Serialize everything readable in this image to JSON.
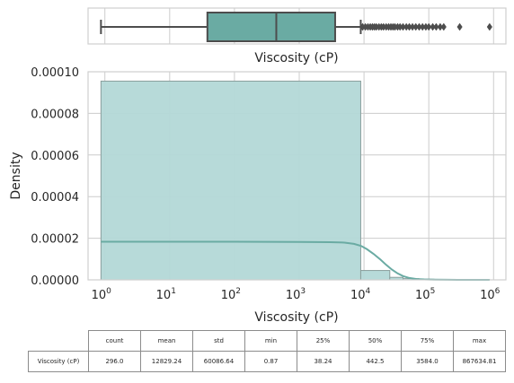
{
  "colors": {
    "box_fill": "#6aaba3",
    "box_line": "#4d4d4d",
    "hist_fill": "#b3d8d7",
    "hist_edge": "#8a9e9c",
    "kde_line": "#6aaba3",
    "grid": "#cccccc",
    "frame": "#cfcfcf"
  },
  "chart_data": [
    {
      "type": "box",
      "xscale": "log",
      "xlabel": "Viscosity (cP)",
      "whisker_low": 0.87,
      "q1": 38.24,
      "median": 442.5,
      "q3": 3584.0,
      "whisker_high": 8900,
      "outliers": [
        9500,
        10500,
        11500,
        12500,
        13500,
        14500,
        15500,
        17000,
        18500,
        20000,
        22000,
        24000,
        26000,
        28000,
        30000,
        33000,
        36000,
        40000,
        45000,
        50000,
        56000,
        63000,
        71000,
        80000,
        90000,
        100000,
        115000,
        130000,
        150000,
        170000,
        300000,
        867634.81
      ]
    },
    {
      "type": "histogram",
      "xscale": "log",
      "xlabel": "Viscosity (cP)",
      "ylabel": "Density",
      "ylim": [
        0,
        0.0001
      ],
      "yticks": [
        "0.00000",
        "0.00002",
        "0.00004",
        "0.00006",
        "0.00008",
        "0.00010"
      ],
      "ytick_values": [
        0,
        2e-05,
        4e-05,
        6e-05,
        8e-05,
        0.0001
      ],
      "xtick_bases": [
        "10",
        "10",
        "10",
        "10",
        "10",
        "10",
        "10"
      ],
      "xtick_exponents": [
        "0",
        "1",
        "2",
        "3",
        "4",
        "5",
        "6"
      ],
      "xtick_values": [
        1,
        10,
        100,
        1000,
        10000,
        100000,
        1000000
      ],
      "grid": true,
      "bins": [
        {
          "x0": 0.87,
          "x1": 8900,
          "density": 9.55e-05
        },
        {
          "x0": 8900,
          "x1": 25000,
          "density": 4.5e-06
        },
        {
          "x0": 25000,
          "x1": 40000,
          "density": 1.2e-06
        },
        {
          "x0": 40000,
          "x1": 70000,
          "density": 6e-07
        },
        {
          "x0": 70000,
          "x1": 120000,
          "density": 3e-07
        },
        {
          "x0": 120000,
          "x1": 867634.81,
          "density": 8e-08
        }
      ],
      "kde": {
        "x": [
          0.87,
          1,
          10,
          100,
          1000,
          3000,
          5000,
          7000,
          9000,
          11000,
          14000,
          18000,
          22000,
          27000,
          33000,
          40000,
          50000,
          65000,
          85000,
          120000,
          200000,
          400000,
          867634.81
        ],
        "y": [
          1.83e-05,
          1.83e-05,
          1.83e-05,
          1.83e-05,
          1.82e-05,
          1.81e-05,
          1.79e-05,
          1.73e-05,
          1.63e-05,
          1.48e-05,
          1.25e-05,
          9.7e-06,
          7.2e-06,
          4.9e-06,
          3.1e-06,
          1.8e-06,
          9e-07,
          4e-07,
          2e-07,
          1e-07,
          3e-08,
          1e-08,
          0
        ]
      }
    },
    {
      "type": "table",
      "columns": [
        "count",
        "mean",
        "std",
        "min",
        "25%",
        "50%",
        "75%",
        "max"
      ],
      "rows": [
        {
          "label": "Viscosity (cP)",
          "values": [
            "296.0",
            "12829.24",
            "60086.64",
            "0.87",
            "38.24",
            "442.5",
            "3584.0",
            "867634.81"
          ]
        }
      ]
    }
  ]
}
